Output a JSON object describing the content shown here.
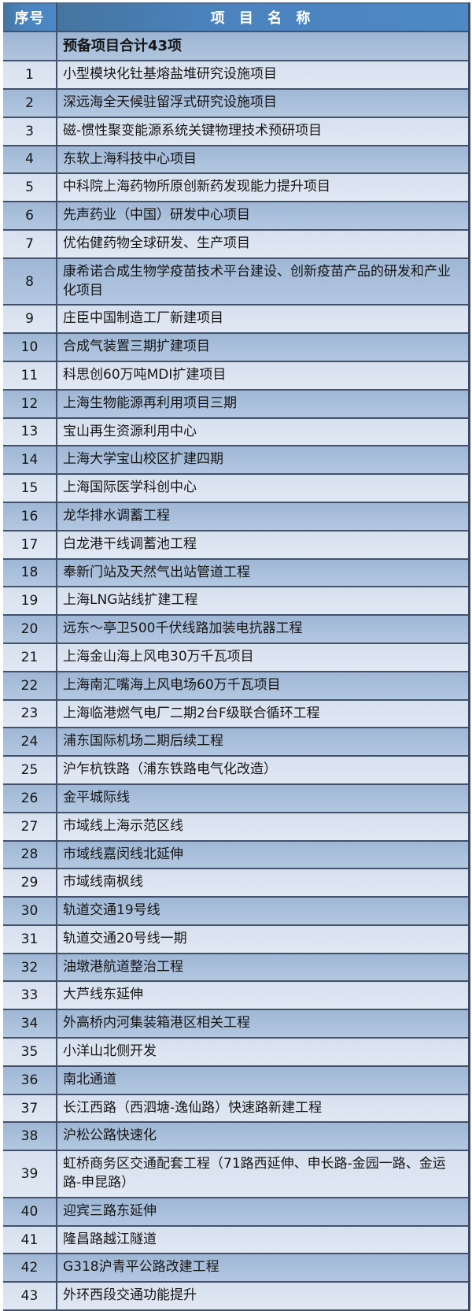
{
  "table": {
    "header": {
      "index_label": "序号",
      "name_label": "项 目 名 称"
    },
    "summary_row": {
      "index": "",
      "name": "预备项目合计43项"
    },
    "rows": [
      {
        "no": "1",
        "name": "小型模块化钍基熔盐堆研究设施项目"
      },
      {
        "no": "2",
        "name": "深远海全天候驻留浮式研究设施项目"
      },
      {
        "no": "3",
        "name": "磁-惯性聚变能源系统关键物理技术预研项目"
      },
      {
        "no": "4",
        "name": "东软上海科技中心项目"
      },
      {
        "no": "5",
        "name": "中科院上海药物所原创新药发现能力提升项目"
      },
      {
        "no": "6",
        "name": "先声药业（中国）研发中心项目"
      },
      {
        "no": "7",
        "name": "优佑健药物全球研发、生产项目"
      },
      {
        "no": "8",
        "name": "康希诺合成生物学疫苗技术平台建设、创新疫苗产品的研发和产业化项目"
      },
      {
        "no": "9",
        "name": "庄臣中国制造工厂新建项目"
      },
      {
        "no": "10",
        "name": "合成气装置三期扩建项目"
      },
      {
        "no": "11",
        "name": "科思创60万吨MDI扩建项目"
      },
      {
        "no": "12",
        "name": "上海生物能源再利用项目三期"
      },
      {
        "no": "13",
        "name": "宝山再生资源利用中心"
      },
      {
        "no": "14",
        "name": "上海大学宝山校区扩建四期"
      },
      {
        "no": "15",
        "name": "上海国际医学科创中心"
      },
      {
        "no": "16",
        "name": "龙华排水调蓄工程"
      },
      {
        "no": "17",
        "name": "白龙港干线调蓄池工程"
      },
      {
        "no": "18",
        "name": "奉新门站及天然气出站管道工程"
      },
      {
        "no": "19",
        "name": "上海LNG站线扩建工程"
      },
      {
        "no": "20",
        "name": "远东～亭卫500千伏线路加装电抗器工程"
      },
      {
        "no": "21",
        "name": "上海金山海上风电30万千瓦项目"
      },
      {
        "no": "22",
        "name": "上海南汇嘴海上风电场60万千瓦项目"
      },
      {
        "no": "23",
        "name": "上海临港燃气电厂二期2台F级联合循环工程"
      },
      {
        "no": "24",
        "name": "浦东国际机场二期后续工程"
      },
      {
        "no": "25",
        "name": "沪乍杭铁路（浦东铁路电气化改造）"
      },
      {
        "no": "26",
        "name": "金平城际线"
      },
      {
        "no": "27",
        "name": "市域线上海示范区线"
      },
      {
        "no": "28",
        "name": "市域线嘉闵线北延伸"
      },
      {
        "no": "29",
        "name": "市域线南枫线"
      },
      {
        "no": "30",
        "name": "轨道交通19号线"
      },
      {
        "no": "31",
        "name": "轨道交通20号线一期"
      },
      {
        "no": "32",
        "name": "油墩港航道整治工程"
      },
      {
        "no": "33",
        "name": "大芦线东延伸"
      },
      {
        "no": "34",
        "name": "外高桥内河集装箱港区相关工程"
      },
      {
        "no": "35",
        "name": "小洋山北侧开发"
      },
      {
        "no": "36",
        "name": "南北通道"
      },
      {
        "no": "37",
        "name": "长江西路（西泗塘-逸仙路）快速路新建工程"
      },
      {
        "no": "38",
        "name": "沪松公路快速化"
      },
      {
        "no": "39",
        "name": "虹桥商务区交通配套工程（71路西延伸、申长路-金园一路、金运路-申昆路）"
      },
      {
        "no": "40",
        "name": "迎宾三路东延伸"
      },
      {
        "no": "41",
        "name": "隆昌路越江隧道"
      },
      {
        "no": "42",
        "name": "G318沪青平公路改建工程"
      },
      {
        "no": "43",
        "name": "外环西段交通功能提升"
      }
    ]
  },
  "colors": {
    "header_bg": "#4a82bc",
    "header_text": "#ffffff",
    "row_light": "#dce4f1",
    "row_medium": "#a9c0dc",
    "summary_row_bg": "#a5bbd7",
    "divider": "#43516d",
    "body_text": "#161616"
  }
}
